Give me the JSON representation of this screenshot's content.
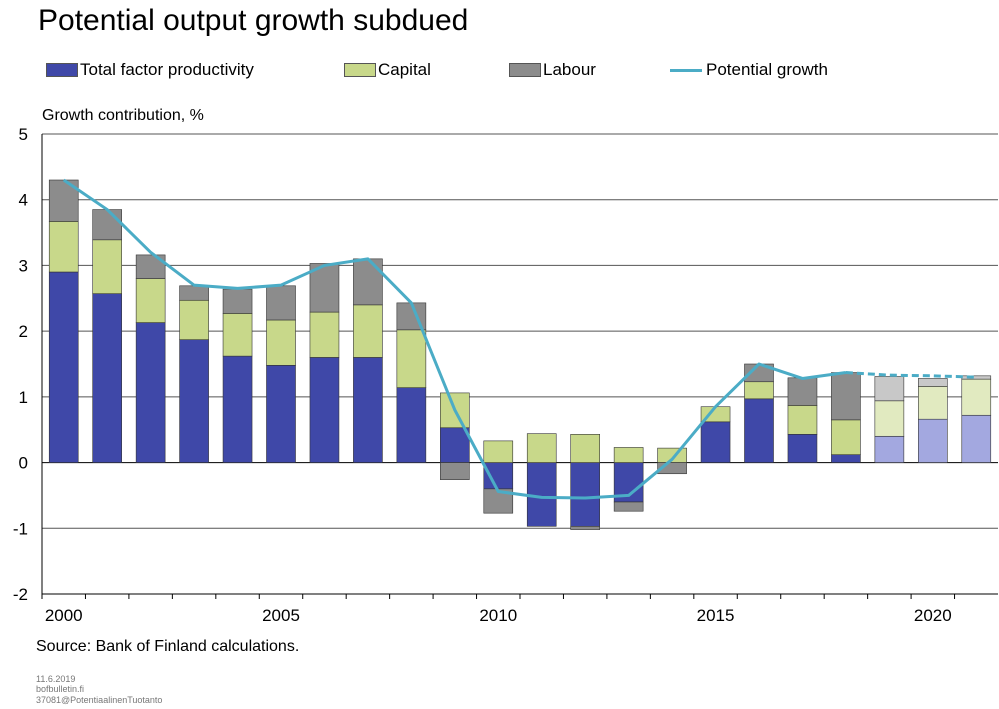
{
  "chart_data": {
    "type": "bar",
    "title": "Potential output growth subdued",
    "ylabel": "Growth contribution, %",
    "source": "Source: Bank of Finland calculations.",
    "ylim": [
      -2,
      5
    ],
    "yticks": [
      -2,
      -1,
      0,
      1,
      2,
      3,
      4,
      5
    ],
    "xticks": [
      "2000",
      "2005",
      "2010",
      "2015",
      "2020"
    ],
    "years": [
      2000,
      2001,
      2002,
      2003,
      2004,
      2005,
      2006,
      2007,
      2008,
      2009,
      2010,
      2011,
      2012,
      2013,
      2014,
      2015,
      2016,
      2017,
      2018,
      2019,
      2020,
      2021
    ],
    "forecast_from": 2019,
    "legend": [
      "Total factor productivity",
      "Capital",
      "Labour",
      "Potential growth"
    ],
    "legend_placement": "top",
    "grid": true,
    "series": [
      {
        "name": "Total factor productivity",
        "color": "#3f48a8",
        "forecast_color": "#a3a8e0",
        "values": [
          2.9,
          2.57,
          2.13,
          1.87,
          1.62,
          1.48,
          1.6,
          1.6,
          1.14,
          0.53,
          -0.4,
          -0.97,
          -0.97,
          -0.6,
          0.0,
          0.62,
          0.97,
          0.43,
          0.12,
          0.4,
          0.66,
          0.72
        ]
      },
      {
        "name": "Capital",
        "color": "#c8d88a",
        "forecast_color": "#e1eac0",
        "values": [
          0.77,
          0.82,
          0.67,
          0.6,
          0.65,
          0.69,
          0.69,
          0.8,
          0.88,
          0.53,
          0.33,
          0.44,
          0.43,
          0.23,
          0.22,
          0.23,
          0.26,
          0.44,
          0.53,
          0.54,
          0.5,
          0.55
        ]
      },
      {
        "name": "Labour",
        "color": "#8c8c8c",
        "forecast_color": "#c8c8c8",
        "values": [
          0.63,
          0.46,
          0.36,
          0.22,
          0.37,
          0.52,
          0.74,
          0.7,
          0.41,
          -0.26,
          -0.37,
          0.0,
          -0.05,
          -0.14,
          -0.17,
          0.0,
          0.27,
          0.42,
          0.72,
          0.37,
          0.12,
          0.05
        ]
      },
      {
        "name": "Potential growth",
        "color": "#4bacc6",
        "values": [
          4.3,
          3.85,
          3.2,
          2.7,
          2.65,
          2.7,
          3.0,
          3.1,
          2.43,
          0.8,
          -0.44,
          -0.53,
          -0.54,
          -0.5,
          0.05,
          0.85,
          1.5,
          1.28,
          1.37,
          1.33,
          1.32,
          1.3
        ]
      }
    ]
  },
  "footer": {
    "date": "11.6.2019",
    "site": "bofbulletin.fi",
    "code": "37081@PotentiaalinenTuotanto"
  }
}
